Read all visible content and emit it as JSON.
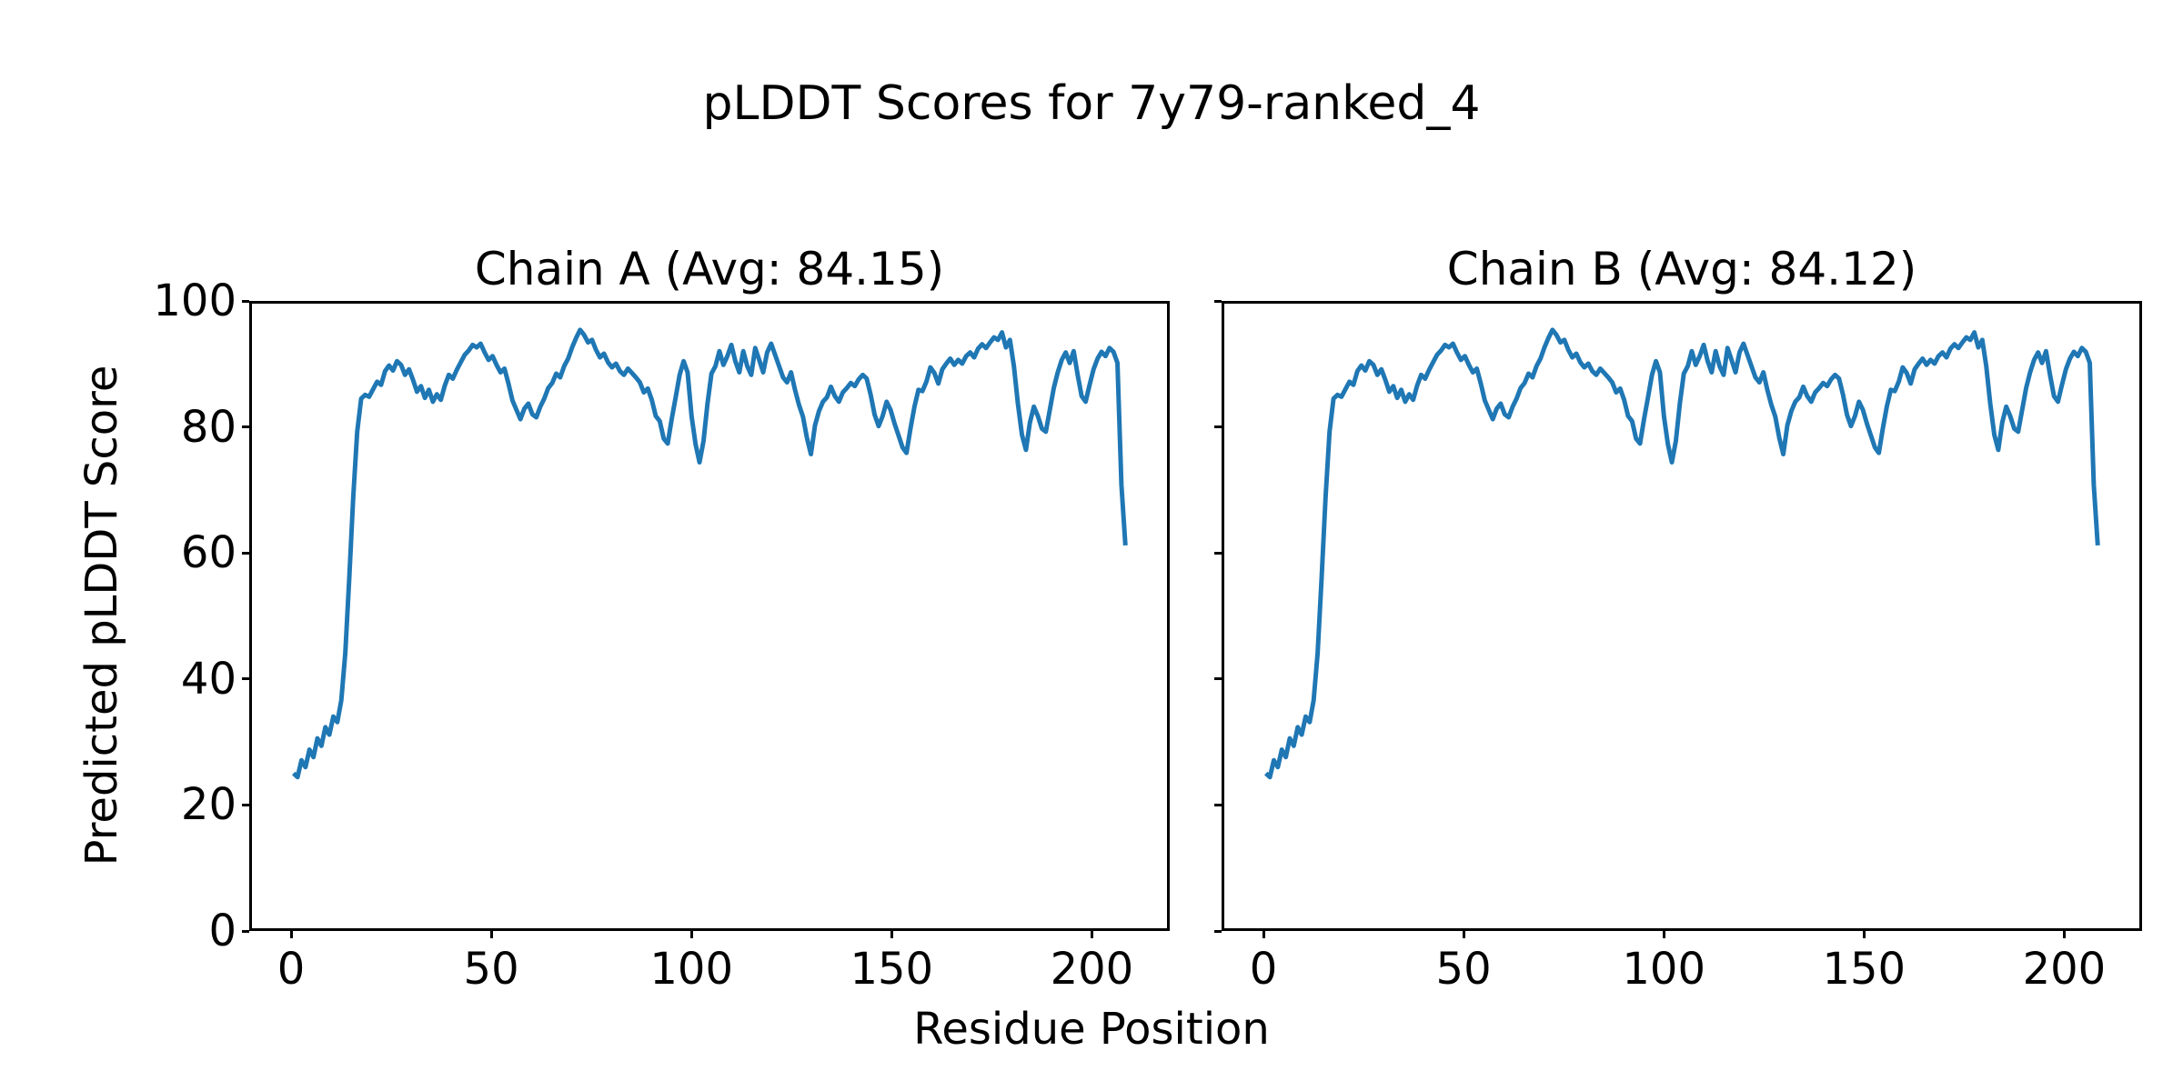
{
  "figure": {
    "background": "#ffffff",
    "text_color": "#000000"
  },
  "chart_data": {
    "type": "line",
    "title": "pLDDT Scores for 7y79-ranked_4",
    "xlabel": "Residue Position",
    "ylabel": "Predicted pLDDT Score",
    "line_color": "#1f77b4",
    "axis_color": "#000000",
    "grid": false,
    "legend": "none",
    "xlim": [
      -10.45,
      219.45
    ],
    "ylim": [
      0,
      100
    ],
    "xticks": [
      0,
      50,
      100,
      150,
      200
    ],
    "yticks": [
      0,
      20,
      40,
      60,
      80,
      100
    ],
    "panels": [
      {
        "title": "Chain A (Avg: 84.15)",
        "chain": "A",
        "avg_plddt": 84.15,
        "x_start": 0,
        "x_step": 1,
        "values": [
          24.8,
          24.2,
          26.9,
          25.8,
          28.6,
          27.4,
          30.4,
          29.2,
          32.2,
          31.0,
          33.9,
          33.0,
          36.5,
          44.0,
          56.0,
          69.0,
          79.5,
          84.8,
          85.4,
          85.1,
          86.3,
          87.5,
          87.0,
          89.2,
          90.1,
          89.3,
          90.8,
          90.2,
          88.6,
          89.5,
          87.8,
          85.9,
          86.8,
          84.9,
          86.2,
          84.3,
          85.5,
          84.6,
          86.9,
          88.6,
          88.0,
          89.4,
          90.6,
          91.8,
          92.5,
          93.4,
          93.0,
          93.6,
          92.2,
          91.0,
          91.6,
          90.2,
          89.0,
          89.6,
          87.2,
          84.5,
          83.0,
          81.5,
          83.2,
          84.0,
          82.3,
          81.8,
          83.5,
          84.8,
          86.5,
          87.3,
          88.8,
          88.2,
          90.0,
          91.2,
          93.0,
          94.5,
          95.8,
          95.0,
          93.8,
          94.2,
          92.6,
          91.4,
          92.0,
          90.6,
          89.8,
          90.4,
          89.2,
          88.6,
          89.6,
          88.9,
          88.2,
          87.4,
          85.8,
          86.4,
          84.6,
          82.0,
          81.2,
          78.4,
          77.6,
          81.5,
          85.0,
          88.6,
          90.8,
          89.0,
          82.0,
          77.5,
          74.6,
          78.0,
          84.0,
          88.8,
          90.0,
          92.4,
          90.2,
          91.6,
          93.4,
          90.8,
          89.0,
          92.4,
          90.0,
          88.6,
          92.9,
          91.0,
          89.0,
          92.2,
          93.6,
          91.8,
          90.0,
          88.2,
          87.4,
          89.0,
          86.2,
          83.8,
          81.9,
          78.5,
          75.9,
          80.5,
          82.8,
          84.3,
          85.0,
          86.7,
          85.2,
          84.3,
          85.8,
          86.5,
          87.3,
          86.8,
          87.9,
          88.6,
          88.0,
          85.4,
          82.2,
          80.4,
          82.0,
          84.3,
          83.0,
          80.8,
          78.9,
          77.0,
          76.1,
          80.0,
          83.5,
          86.2,
          86.0,
          87.5,
          89.8,
          88.9,
          87.2,
          89.5,
          90.4,
          91.2,
          90.2,
          91.0,
          90.4,
          91.6,
          92.2,
          91.4,
          92.8,
          93.5,
          92.9,
          93.8,
          94.6,
          94.2,
          95.4,
          93.0,
          94.2,
          90.0,
          84.0,
          79.0,
          76.6,
          81.0,
          83.5,
          82.0,
          80.0,
          79.5,
          83.0,
          86.5,
          89.0,
          91.0,
          92.2,
          90.5,
          92.4,
          88.6,
          85.2,
          84.3,
          87.0,
          89.5,
          91.2,
          92.3,
          91.6,
          92.9,
          92.3,
          90.5,
          71.0,
          61.3
        ]
      },
      {
        "title": "Chain B (Avg: 84.12)",
        "chain": "B",
        "avg_plddt": 84.12,
        "x_start": 0,
        "x_step": 1,
        "values": [
          24.8,
          24.2,
          26.9,
          25.8,
          28.6,
          27.4,
          30.4,
          29.2,
          32.2,
          31.0,
          33.9,
          33.0,
          36.5,
          44.0,
          56.0,
          69.0,
          79.5,
          84.8,
          85.4,
          85.1,
          86.3,
          87.5,
          87.0,
          89.2,
          90.1,
          89.3,
          90.8,
          90.2,
          88.6,
          89.5,
          87.8,
          85.9,
          86.8,
          84.9,
          86.2,
          84.3,
          85.5,
          84.6,
          86.9,
          88.6,
          88.0,
          89.4,
          90.6,
          91.8,
          92.5,
          93.4,
          93.0,
          93.6,
          92.2,
          91.0,
          91.6,
          90.2,
          89.0,
          89.6,
          87.2,
          84.5,
          83.0,
          81.5,
          83.2,
          84.0,
          82.3,
          81.8,
          83.5,
          84.8,
          86.5,
          87.3,
          88.8,
          88.2,
          90.0,
          91.2,
          93.0,
          94.5,
          95.8,
          95.0,
          93.8,
          94.2,
          92.6,
          91.4,
          92.0,
          90.6,
          89.8,
          90.4,
          89.2,
          88.6,
          89.6,
          88.9,
          88.2,
          87.4,
          85.8,
          86.4,
          84.6,
          82.0,
          81.2,
          78.4,
          77.6,
          81.5,
          85.0,
          88.6,
          90.8,
          89.0,
          82.0,
          77.5,
          74.6,
          78.0,
          84.0,
          88.8,
          90.0,
          92.4,
          90.2,
          91.6,
          93.4,
          90.8,
          89.0,
          92.4,
          90.0,
          88.6,
          92.9,
          91.0,
          89.0,
          92.2,
          93.6,
          91.8,
          90.0,
          88.2,
          87.4,
          89.0,
          86.2,
          83.8,
          81.9,
          78.5,
          75.9,
          80.5,
          82.8,
          84.3,
          85.0,
          86.7,
          85.2,
          84.3,
          85.8,
          86.5,
          87.3,
          86.8,
          87.9,
          88.6,
          88.0,
          85.4,
          82.2,
          80.4,
          82.0,
          84.3,
          83.0,
          80.8,
          78.9,
          77.0,
          76.1,
          80.0,
          83.5,
          86.2,
          86.0,
          87.5,
          89.8,
          88.9,
          87.2,
          89.5,
          90.4,
          91.2,
          90.2,
          91.0,
          90.4,
          91.6,
          92.2,
          91.4,
          92.8,
          93.5,
          92.9,
          93.8,
          94.6,
          94.2,
          95.4,
          93.0,
          94.2,
          90.0,
          84.0,
          79.0,
          76.6,
          81.0,
          83.5,
          82.0,
          80.0,
          79.5,
          83.0,
          86.5,
          89.0,
          91.0,
          92.2,
          90.5,
          92.4,
          88.6,
          85.2,
          84.3,
          87.0,
          89.5,
          91.2,
          92.3,
          91.6,
          92.9,
          92.3,
          90.5,
          71.0,
          61.3
        ]
      }
    ]
  }
}
